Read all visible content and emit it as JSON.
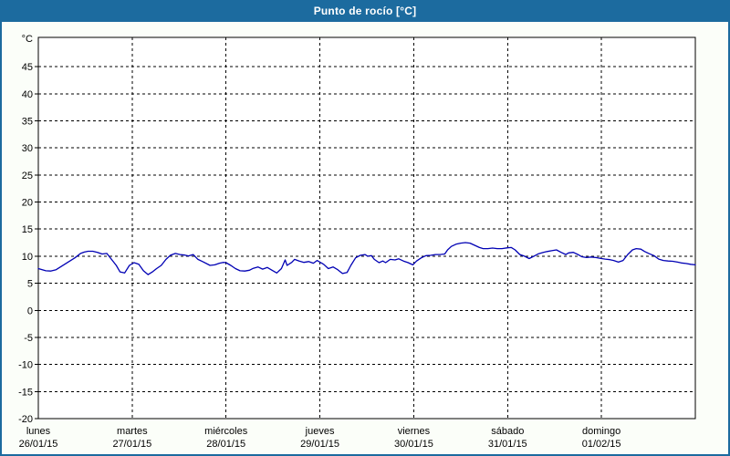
{
  "window": {
    "title": "Punto de rocío [°C]"
  },
  "theme": {
    "header_bg": "#1C6B9F",
    "header_text": "#FFFFFF",
    "page_bg": "#FBFEF9",
    "plot_bg": "#FFFFFF",
    "frame_color": "#000000",
    "grid_color": "#000000",
    "line_color": "#0000B4",
    "label_color": "#000000"
  },
  "chart_data": {
    "type": "line",
    "title": "Punto de rocío [°C]",
    "y_unit": "°C",
    "ylim": [
      -20,
      50.4
    ],
    "y_ticks": [
      45,
      40,
      35,
      30,
      25,
      20,
      15,
      10,
      5,
      0,
      -5,
      -10,
      -15,
      -20
    ],
    "grid": true,
    "legend": "none",
    "x_days": [
      {
        "name": "lunes",
        "date": "26/01/15"
      },
      {
        "name": "martes",
        "date": "27/01/15"
      },
      {
        "name": "miércoles",
        "date": "28/01/15"
      },
      {
        "name": "jueves",
        "date": "29/01/15"
      },
      {
        "name": "viernes",
        "date": "30/01/15"
      },
      {
        "name": "sábado",
        "date": "31/01/15"
      },
      {
        "name": "domingo",
        "date": "01/02/15"
      }
    ],
    "x_range_days": [
      0,
      7
    ],
    "series": [
      {
        "name": "Punto de rocío",
        "color": "#0000B4",
        "points": [
          [
            0,
            7.7
          ],
          [
            0.08,
            7.3
          ],
          [
            0.13,
            7.25
          ],
          [
            0.19,
            7.5
          ],
          [
            0.29,
            8.6
          ],
          [
            0.39,
            9.7
          ],
          [
            0.45,
            10.5
          ],
          [
            0.49,
            10.75
          ],
          [
            0.53,
            10.9
          ],
          [
            0.58,
            10.9
          ],
          [
            0.63,
            10.7
          ],
          [
            0.68,
            10.4
          ],
          [
            0.73,
            10.5
          ],
          [
            0.78,
            9.4
          ],
          [
            0.83,
            8.3
          ],
          [
            0.87,
            7.1
          ],
          [
            0.92,
            6.9
          ],
          [
            0.97,
            8.3
          ],
          [
            1.02,
            8.8
          ],
          [
            1.07,
            8.5
          ],
          [
            1.12,
            7.3
          ],
          [
            1.17,
            6.6
          ],
          [
            1.22,
            7.15
          ],
          [
            1.26,
            7.7
          ],
          [
            1.31,
            8.3
          ],
          [
            1.36,
            9.4
          ],
          [
            1.41,
            10.2
          ],
          [
            1.46,
            10.5
          ],
          [
            1.51,
            10.3
          ],
          [
            1.56,
            10.2
          ],
          [
            1.6,
            10.05
          ],
          [
            1.65,
            10.3
          ],
          [
            1.7,
            9.4
          ],
          [
            1.75,
            9.0
          ],
          [
            1.83,
            8.3
          ],
          [
            1.88,
            8.4
          ],
          [
            1.93,
            8.7
          ],
          [
            1.97,
            8.85
          ],
          [
            2.0,
            8.8
          ],
          [
            2.05,
            8.3
          ],
          [
            2.1,
            7.7
          ],
          [
            2.15,
            7.3
          ],
          [
            2.2,
            7.25
          ],
          [
            2.25,
            7.4
          ],
          [
            2.29,
            7.75
          ],
          [
            2.34,
            8.0
          ],
          [
            2.39,
            7.6
          ],
          [
            2.44,
            7.9
          ],
          [
            2.49,
            7.4
          ],
          [
            2.54,
            6.9
          ],
          [
            2.59,
            7.7
          ],
          [
            2.63,
            9.3
          ],
          [
            2.65,
            8.3
          ],
          [
            2.7,
            8.85
          ],
          [
            2.73,
            9.4
          ],
          [
            2.78,
            9.1
          ],
          [
            2.83,
            8.85
          ],
          [
            2.88,
            9.0
          ],
          [
            2.93,
            8.7
          ],
          [
            2.97,
            9.2
          ],
          [
            3.0,
            8.9
          ],
          [
            3.04,
            8.5
          ],
          [
            3.09,
            7.7
          ],
          [
            3.14,
            8.0
          ],
          [
            3.19,
            7.5
          ],
          [
            3.24,
            6.8
          ],
          [
            3.29,
            7.0
          ],
          [
            3.33,
            8.3
          ],
          [
            3.38,
            9.7
          ],
          [
            3.43,
            10.15
          ],
          [
            3.48,
            10.3
          ],
          [
            3.51,
            10.0
          ],
          [
            3.55,
            10.1
          ],
          [
            3.58,
            9.4
          ],
          [
            3.63,
            8.8
          ],
          [
            3.67,
            9.1
          ],
          [
            3.7,
            8.8
          ],
          [
            3.75,
            9.4
          ],
          [
            3.8,
            9.3
          ],
          [
            3.84,
            9.5
          ],
          [
            3.89,
            9.1
          ],
          [
            3.94,
            8.8
          ],
          [
            3.99,
            8.4
          ],
          [
            4.03,
            9.1
          ],
          [
            4.08,
            9.7
          ],
          [
            4.13,
            10.1
          ],
          [
            4.18,
            10.15
          ],
          [
            4.23,
            10.3
          ],
          [
            4.28,
            10.3
          ],
          [
            4.33,
            10.4
          ],
          [
            4.36,
            11.15
          ],
          [
            4.4,
            11.8
          ],
          [
            4.45,
            12.2
          ],
          [
            4.5,
            12.4
          ],
          [
            4.55,
            12.5
          ],
          [
            4.6,
            12.4
          ],
          [
            4.65,
            12.0
          ],
          [
            4.7,
            11.6
          ],
          [
            4.74,
            11.4
          ],
          [
            4.79,
            11.4
          ],
          [
            4.84,
            11.5
          ],
          [
            4.89,
            11.4
          ],
          [
            4.94,
            11.4
          ],
          [
            5.0,
            11.55
          ],
          [
            5.04,
            11.6
          ],
          [
            5.08,
            11.15
          ],
          [
            5.13,
            10.3
          ],
          [
            5.18,
            10.0
          ],
          [
            5.23,
            9.55
          ],
          [
            5.28,
            10.0
          ],
          [
            5.33,
            10.45
          ],
          [
            5.38,
            10.7
          ],
          [
            5.42,
            10.85
          ],
          [
            5.47,
            11.0
          ],
          [
            5.52,
            11.15
          ],
          [
            5.57,
            10.7
          ],
          [
            5.62,
            10.3
          ],
          [
            5.65,
            10.6
          ],
          [
            5.7,
            10.7
          ],
          [
            5.75,
            10.3
          ],
          [
            5.79,
            9.9
          ],
          [
            5.84,
            9.75
          ],
          [
            5.89,
            9.85
          ],
          [
            5.94,
            9.75
          ],
          [
            6.0,
            9.55
          ],
          [
            6.04,
            9.45
          ],
          [
            6.09,
            9.35
          ],
          [
            6.13,
            9.2
          ],
          [
            6.18,
            8.9
          ],
          [
            6.23,
            9.2
          ],
          [
            6.28,
            10.3
          ],
          [
            6.33,
            11.15
          ],
          [
            6.37,
            11.4
          ],
          [
            6.42,
            11.3
          ],
          [
            6.46,
            10.85
          ],
          [
            6.51,
            10.45
          ],
          [
            6.56,
            10.1
          ],
          [
            6.61,
            9.45
          ],
          [
            6.66,
            9.2
          ],
          [
            6.71,
            9.1
          ],
          [
            6.76,
            9.05
          ],
          [
            6.81,
            8.9
          ],
          [
            6.85,
            8.75
          ],
          [
            6.9,
            8.65
          ],
          [
            6.95,
            8.5
          ],
          [
            7.0,
            8.4
          ]
        ]
      }
    ]
  }
}
